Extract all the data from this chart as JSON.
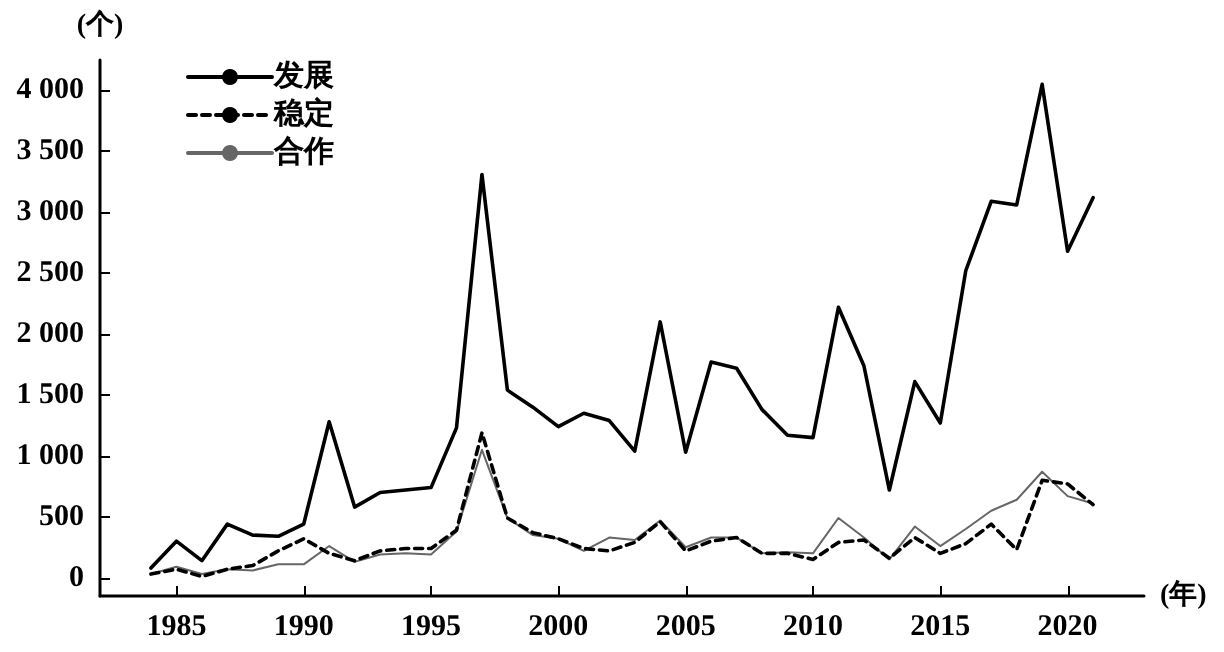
{
  "chart_data": {
    "type": "line",
    "ylabel": "(个)",
    "xlabel": "(年)",
    "x": [
      1984,
      1985,
      1986,
      1987,
      1988,
      1989,
      1990,
      1991,
      1992,
      1993,
      1994,
      1995,
      1996,
      1997,
      1998,
      1999,
      2000,
      2001,
      2002,
      2003,
      2004,
      2005,
      2006,
      2007,
      2008,
      2009,
      2010,
      2011,
      2012,
      2013,
      2014,
      2015,
      2016,
      2017,
      2018,
      2019,
      2020,
      2021
    ],
    "series": [
      {
        "name": "发展",
        "color": "#000000",
        "line_style": "solid",
        "values": [
          80,
          300,
          140,
          440,
          350,
          340,
          440,
          1280,
          580,
          700,
          720,
          740,
          1230,
          3310,
          1540,
          1400,
          1240,
          1350,
          1290,
          1040,
          2100,
          1030,
          1770,
          1720,
          1380,
          1170,
          1150,
          2220,
          1740,
          720,
          1610,
          1270,
          2520,
          3090,
          3060,
          4050,
          2680,
          3120
        ]
      },
      {
        "name": "稳定",
        "color": "#000000",
        "line_style": "dashed",
        "values": [
          30,
          70,
          10,
          70,
          100,
          220,
          320,
          200,
          140,
          220,
          240,
          240,
          390,
          1190,
          490,
          370,
          320,
          240,
          220,
          290,
          460,
          220,
          300,
          330,
          200,
          200,
          150,
          290,
          310,
          160,
          330,
          200,
          280,
          440,
          230,
          800,
          770,
          600
        ]
      },
      {
        "name": "合作",
        "color": "#666666",
        "line_style": "solid",
        "values": [
          30,
          90,
          30,
          70,
          60,
          110,
          110,
          260,
          130,
          190,
          200,
          190,
          380,
          1050,
          490,
          350,
          320,
          220,
          330,
          310,
          470,
          250,
          330,
          330,
          200,
          210,
          200,
          490,
          330,
          150,
          420,
          260,
          400,
          550,
          640,
          870,
          670,
          610
        ]
      }
    ],
    "xlim": [
      1982,
      2023
    ],
    "xticks": [
      1985,
      1990,
      1995,
      2000,
      2005,
      2010,
      2015,
      2020
    ],
    "ylim": [
      -150,
      4250
    ],
    "yticks": [
      0,
      500,
      {
        "value": 1000,
        "label": "1 000"
      },
      {
        "value": 1500,
        "label": "1 500"
      },
      {
        "value": 2000,
        "label": "2 000"
      },
      {
        "value": 2500,
        "label": "2 500"
      },
      {
        "value": 3000,
        "label": "3 000"
      },
      {
        "value": 3500,
        "label": "3 500"
      },
      {
        "value": 4000,
        "label": "4 000"
      }
    ],
    "grid": false,
    "legend": "top left",
    "marker": "none"
  }
}
